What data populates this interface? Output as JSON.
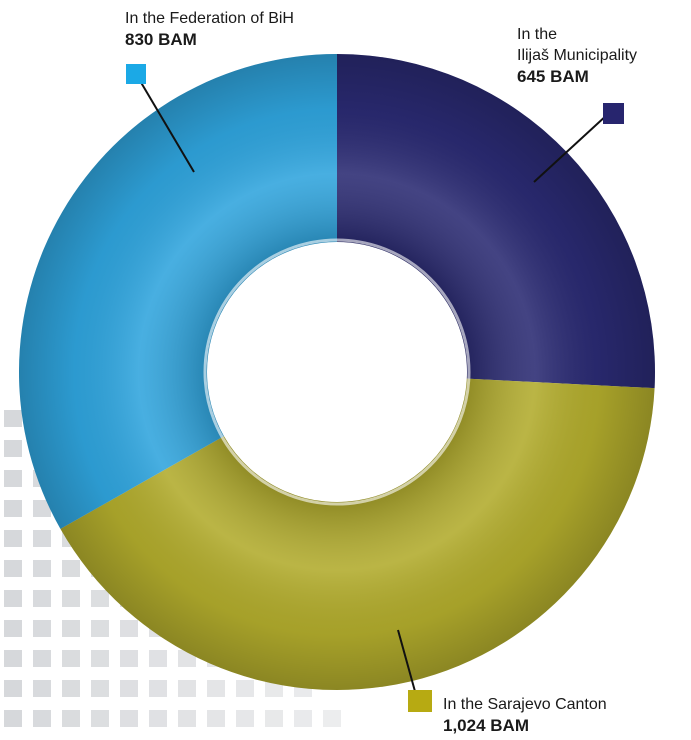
{
  "chart_data": {
    "type": "donut",
    "unit": "BAM",
    "series": [
      {
        "label_line1": "In the",
        "label_line2": "Ilijaš Municipality",
        "value": 645,
        "value_label": "645 BAM",
        "color": "#2a2a72"
      },
      {
        "label_line1": "In the Sarajevo Canton",
        "value": 1024,
        "value_label": "1,024 BAM",
        "color": "#b1ab2c"
      },
      {
        "label_line1": "In the Federation of BiH",
        "value": 830,
        "value_label": "830 BAM",
        "color": "#2fa4dd"
      }
    ]
  },
  "colors": {
    "fbih_marker": "#1ba9e6",
    "ilijas_marker": "#27256e",
    "sarajevo_marker": "#b7aa12",
    "pattern": "#d4d6d9"
  }
}
